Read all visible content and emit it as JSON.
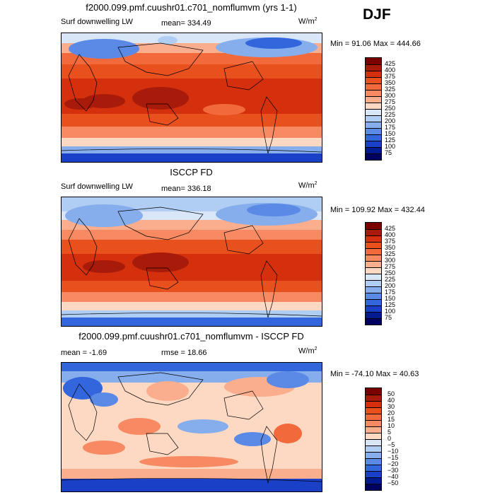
{
  "season": "DJF",
  "panels": [
    {
      "title": "f2000.099.pmf.cuushr01.c701_nomflumvm (yrs 1-1)",
      "variable": "Surf downwelling LW",
      "stat1": "mean= 334.49",
      "stat2": "",
      "units": "W/m",
      "units_sup": "2",
      "minmax": "Min =  91.06 Max = 444.66",
      "levels": [
        "425",
        "400",
        "375",
        "350",
        "325",
        "300",
        "275",
        "250",
        "225",
        "200",
        "175",
        "150",
        "125",
        "100",
        "75"
      ]
    },
    {
      "title": "ISCCP FD",
      "variable": "Surf downwelling LW",
      "stat1": "mean= 336.18",
      "stat2": "",
      "units": "W/m",
      "units_sup": "2",
      "minmax": "Min = 109.92 Max = 432.44",
      "levels": [
        "425",
        "400",
        "375",
        "350",
        "325",
        "300",
        "275",
        "250",
        "225",
        "200",
        "175",
        "150",
        "125",
        "100",
        "75"
      ]
    },
    {
      "title": "f2000.099.pmf.cuushr01.c701_nomflumvm - ISCCP FD",
      "variable": "",
      "stat1": "mean =   -1.69",
      "stat2": "rmse =  18.66",
      "units": "W/m",
      "units_sup": "2",
      "minmax": "Min = -74.10 Max =  40.63",
      "levels": [
        "50",
        "40",
        "30",
        "20",
        "15",
        "10",
        "5",
        "0",
        "−5",
        "−10",
        "−15",
        "−20",
        "−30",
        "−40",
        "−50"
      ]
    }
  ],
  "colors": {
    "scale": [
      "#7a0000",
      "#a81a0a",
      "#d4300e",
      "#e8501e",
      "#f26a3c",
      "#f78a62",
      "#fbae8e",
      "#fdd9c4",
      "#d8e6f8",
      "#b0cdf3",
      "#86aeec",
      "#5a8ae6",
      "#3366dc",
      "#1a40c8",
      "#001a90",
      "#000060"
    ]
  }
}
